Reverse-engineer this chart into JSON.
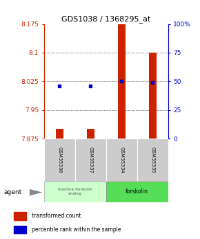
{
  "title": "GDS1038 / 1368295_at",
  "samples": [
    "GSM35336",
    "GSM35337",
    "GSM35334",
    "GSM35335"
  ],
  "transformed_counts": [
    7.9,
    7.9,
    8.175,
    8.1
  ],
  "percentile_ranks": [
    46,
    46,
    50,
    49
  ],
  "ylim_left": [
    7.875,
    8.175
  ],
  "ylim_right": [
    0,
    100
  ],
  "yticks_left": [
    7.875,
    7.95,
    8.025,
    8.1,
    8.175
  ],
  "yticks_right": [
    0,
    25,
    50,
    75,
    100
  ],
  "ytick_labels_left": [
    "7.875",
    "7.95",
    "8.025",
    "8.1",
    "8.175"
  ],
  "ytick_labels_right": [
    "0",
    "25",
    "50",
    "75",
    "100%"
  ],
  "bar_color": "#cc2200",
  "dot_color": "#0000cc",
  "bar_bottom": 7.875,
  "group1_label": "inactive forskolin\nanalog",
  "group2_label": "forskolin",
  "agent_label": "agent",
  "legend_bar": "transformed count",
  "legend_dot": "percentile rank within the sample",
  "group1_color": "#ccffcc",
  "group2_color": "#55dd55",
  "grid_color": "#000000",
  "title_fontsize": 8,
  "tick_fontsize": 6.5,
  "axis_color_left": "#cc2200",
  "axis_color_right": "#0000cc",
  "bar_width": 0.25
}
